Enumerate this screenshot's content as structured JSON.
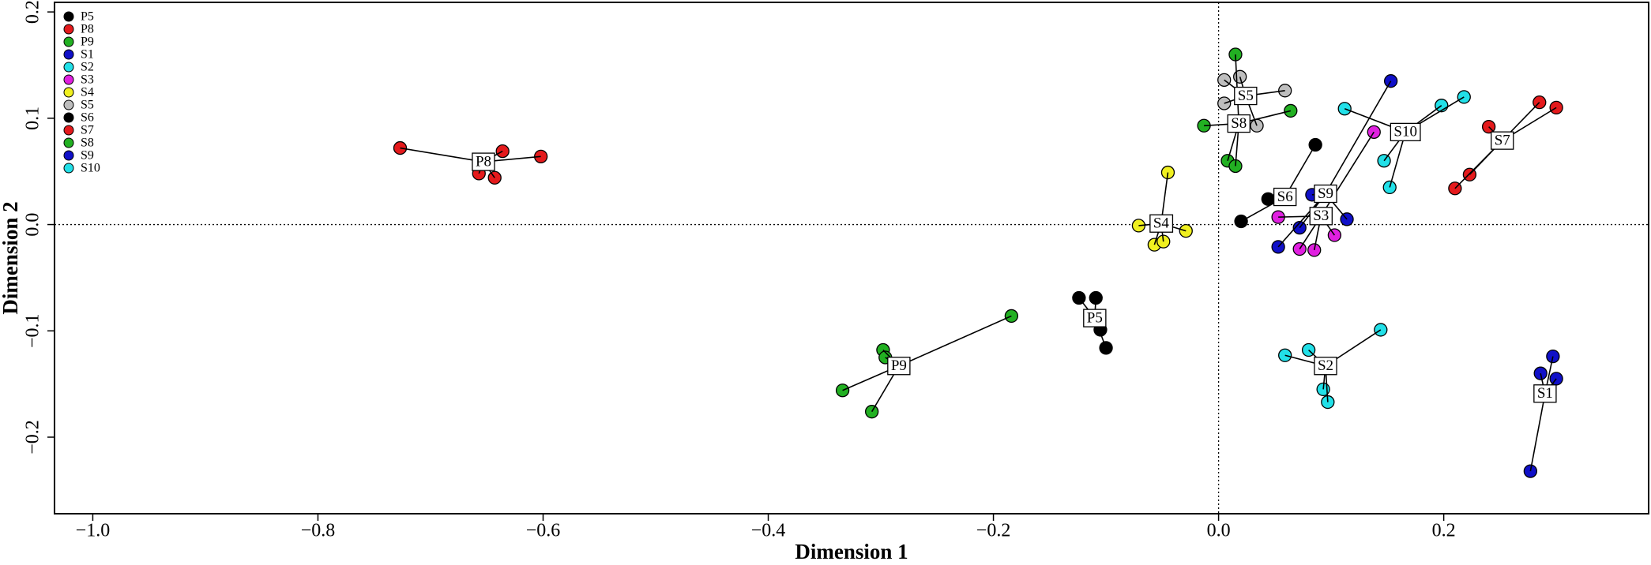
{
  "chart_data": {
    "type": "scatter",
    "x_label": "Dimension 1",
    "y_label": "Dimension 2",
    "xlim": [
      -1.034,
      0.382
    ],
    "ylim": [
      -0.272,
      0.209
    ],
    "xticks": [
      {
        "value": -1.0,
        "label": "−1.0"
      },
      {
        "value": -0.8,
        "label": "−0.8"
      },
      {
        "value": -0.6,
        "label": "−0.6"
      },
      {
        "value": -0.4,
        "label": "−0.4"
      },
      {
        "value": -0.2,
        "label": "−0.2"
      },
      {
        "value": 0.0,
        "label": "0.0"
      },
      0.2
    ],
    "yticks": [
      {
        "value": -0.2,
        "label": "−0.2"
      },
      {
        "value": -0.1,
        "label": "−0.1"
      },
      {
        "value": 0.0,
        "label": "0.0"
      },
      0.1,
      0.2
    ],
    "reference_lines": {
      "x": 0,
      "y": 0
    },
    "legend": "top-left",
    "series": [
      {
        "name": "P5",
        "color": "#000000",
        "center_x": -0.11,
        "center_y": -0.088,
        "x": [
          -0.124,
          -0.109,
          -0.105,
          -0.1
        ],
        "y": [
          -0.069,
          -0.069,
          -0.099,
          -0.116
        ]
      },
      {
        "name": "P8",
        "color": "#e41a1c",
        "center_x": -0.653,
        "center_y": 0.059,
        "x": [
          -0.727,
          -0.636,
          -0.602,
          -0.657,
          -0.643
        ],
        "y": [
          0.072,
          0.069,
          0.064,
          0.048,
          0.044
        ]
      },
      {
        "name": "P9",
        "color": "#22b022",
        "center_x": -0.284,
        "center_y": -0.133,
        "x": [
          -0.184,
          -0.298,
          -0.296,
          -0.334,
          -0.308
        ],
        "y": [
          -0.086,
          -0.118,
          -0.125,
          -0.156,
          -0.176
        ]
      },
      {
        "name": "S1",
        "color": "#1010c8",
        "center_x": 0.29,
        "center_y": -0.159,
        "x": [
          0.297,
          0.286,
          0.3,
          0.277
        ],
        "y": [
          -0.124,
          -0.14,
          -0.145,
          -0.232
        ]
      },
      {
        "name": "S2",
        "color": "#22e0e8",
        "center_x": 0.095,
        "center_y": -0.133,
        "x": [
          0.144,
          0.059,
          0.08,
          0.093,
          0.097
        ],
        "y": [
          -0.099,
          -0.123,
          -0.118,
          -0.155,
          -0.167
        ]
      },
      {
        "name": "S3",
        "color": "#e020e0",
        "center_x": 0.091,
        "center_y": 0.008,
        "x": [
          0.138,
          0.053,
          0.072,
          0.085,
          0.103
        ],
        "y": [
          0.087,
          0.007,
          -0.023,
          -0.024,
          -0.01
        ]
      },
      {
        "name": "S4",
        "color": "#f0f020",
        "center_x": -0.051,
        "center_y": 0.001,
        "x": [
          -0.045,
          -0.071,
          -0.029,
          -0.057,
          -0.049
        ],
        "y": [
          0.049,
          -0.001,
          -0.006,
          -0.019,
          -0.016
        ]
      },
      {
        "name": "S5",
        "color": "#bebebe",
        "center_x": 0.024,
        "center_y": 0.121,
        "x": [
          0.005,
          0.019,
          0.059,
          0.005,
          0.034
        ],
        "y": [
          0.136,
          0.139,
          0.126,
          0.114,
          0.093
        ]
      },
      {
        "name": "S6",
        "color": "#000000",
        "center_x": 0.059,
        "center_y": 0.026,
        "x": [
          0.086,
          0.044,
          0.02
        ],
        "y": [
          0.075,
          0.024,
          0.003
        ]
      },
      {
        "name": "S7",
        "color": "#e41a1c",
        "center_x": 0.252,
        "center_y": 0.079,
        "x": [
          0.285,
          0.3,
          0.24,
          0.223,
          0.21
        ],
        "y": [
          0.115,
          0.11,
          0.092,
          0.047,
          0.034
        ]
      },
      {
        "name": "S8",
        "color": "#22b022",
        "center_x": 0.018,
        "center_y": 0.095,
        "x": [
          0.015,
          0.064,
          -0.013,
          0.008,
          0.015
        ],
        "y": [
          0.16,
          0.107,
          0.093,
          0.06,
          0.055
        ]
      },
      {
        "name": "S9",
        "color": "#1010c8",
        "center_x": 0.095,
        "center_y": 0.029,
        "x": [
          0.153,
          0.083,
          0.114,
          0.072,
          0.053
        ],
        "y": [
          0.135,
          0.028,
          0.005,
          -0.003,
          -0.021
        ]
      },
      {
        "name": "S10",
        "color": "#22e0e8",
        "center_x": 0.166,
        "center_y": 0.087,
        "x": [
          0.218,
          0.198,
          0.112,
          0.147,
          0.152
        ],
        "y": [
          0.12,
          0.112,
          0.109,
          0.06,
          0.035
        ]
      }
    ]
  }
}
